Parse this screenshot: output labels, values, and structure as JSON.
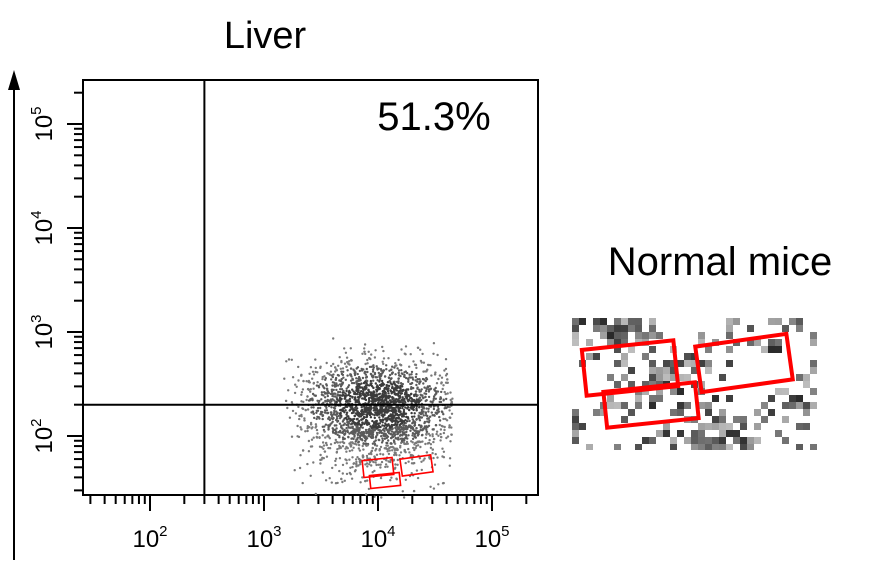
{
  "chart_data": {
    "type": "scatter",
    "title": "Liver",
    "xscale": "log",
    "yscale": "log",
    "xlim": [
      10,
      300000
    ],
    "ylim": [
      25,
      300000
    ],
    "x_ticks": [
      {
        "base": "10",
        "exp": "2",
        "value": 100
      },
      {
        "base": "10",
        "exp": "3",
        "value": 1000
      },
      {
        "base": "10",
        "exp": "4",
        "value": 10000
      },
      {
        "base": "10",
        "exp": "5",
        "value": 100000
      }
    ],
    "y_ticks": [
      {
        "base": "10",
        "exp": "2",
        "value": 100
      },
      {
        "base": "10",
        "exp": "3",
        "value": 1000
      },
      {
        "base": "10",
        "exp": "4",
        "value": 10000
      },
      {
        "base": "10",
        "exp": "5",
        "value": 100000
      }
    ],
    "gates": {
      "x": 300,
      "y": 200
    },
    "quadrant_label": "51.3%",
    "population": {
      "center_x": 10000,
      "center_y": 200,
      "x_range": [
        1500,
        45000
      ],
      "y_range": [
        25,
        1000
      ]
    },
    "highlight_color": "#ff0000",
    "point_color": "#555555"
  },
  "inset": {
    "label": "Normal mice"
  }
}
